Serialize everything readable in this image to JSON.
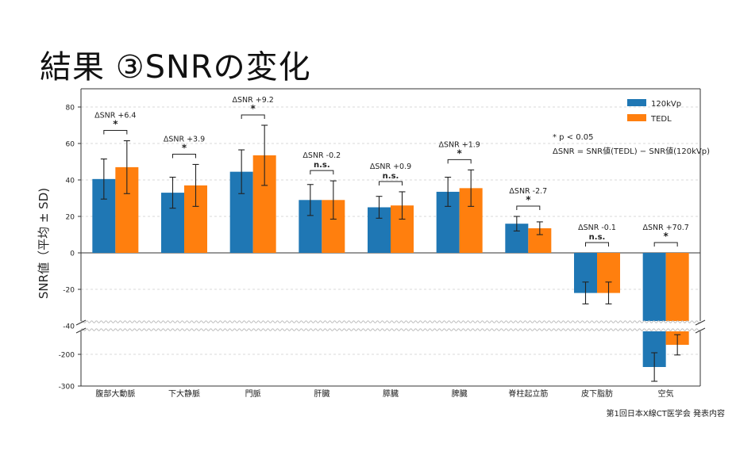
{
  "slide": {
    "title": "結果 ③SNRの変化",
    "footer": "第1回日本X線CT医学会 発表内容"
  },
  "chart_data": {
    "type": "bar",
    "ylabel": "SNR値（平均 ± SD)",
    "categories": [
      "腹部大動脈",
      "下大静脈",
      "門脈",
      "肝臓",
      "膵臓",
      "脾臓",
      "脊柱起立筋",
      "皮下脂肪",
      "空気"
    ],
    "series": [
      {
        "name": "120kVp",
        "color": "#1f77b4",
        "values": [
          40.5,
          33,
          44.5,
          29,
          25,
          33.5,
          16,
          -22,
          -240
        ],
        "sd": [
          11,
          8.5,
          12,
          8.5,
          6,
          8,
          4,
          6,
          45
        ]
      },
      {
        "name": "TEDL",
        "color": "#ff7f0e",
        "values": [
          47,
          37,
          53.5,
          29,
          26,
          35.5,
          13.5,
          -22,
          -170
        ],
        "sd": [
          14.5,
          11.5,
          16.5,
          10.5,
          7.5,
          10,
          3.5,
          6,
          32
        ]
      }
    ],
    "upper_axis": {
      "ylim": [
        -40,
        90
      ],
      "ticks": [
        80,
        60,
        40,
        20,
        0,
        -20,
        -40
      ]
    },
    "lower_axis": {
      "ylim": [
        -300,
        -120
      ],
      "ticks": [
        -200,
        -300
      ]
    },
    "axis_break": true,
    "grid": "horizontal-dashed",
    "legend_position": "top-right",
    "annotations": [
      {
        "delta": "ΔSNR +6.4",
        "sig": "*"
      },
      {
        "delta": "ΔSNR +3.9",
        "sig": "*"
      },
      {
        "delta": "ΔSNR +9.2",
        "sig": "*"
      },
      {
        "delta": "ΔSNR -0.2",
        "sig": "n.s."
      },
      {
        "delta": "ΔSNR +0.9",
        "sig": "n.s."
      },
      {
        "delta": "ΔSNR +1.9",
        "sig": "*"
      },
      {
        "delta": "ΔSNR -2.7",
        "sig": "*"
      },
      {
        "delta": "ΔSNR -0.1",
        "sig": "n.s."
      },
      {
        "delta": "ΔSNR +70.7",
        "sig": "*"
      }
    ],
    "notes": [
      "* p < 0.05",
      "ΔSNR = SNR値(TEDL) − SNR値(120kVp)"
    ]
  }
}
